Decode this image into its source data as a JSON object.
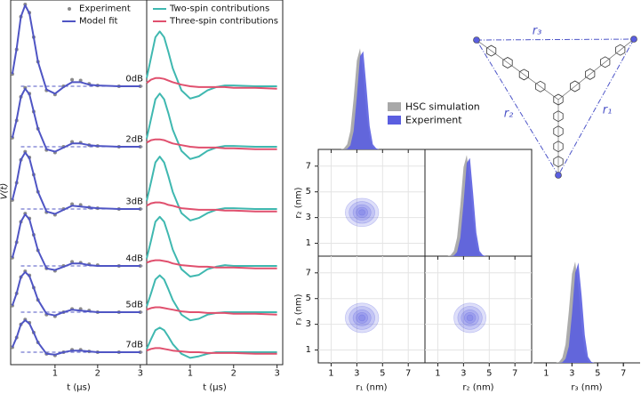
{
  "chart_data": [
    {
      "type": "trace-stack",
      "ylabel": "V(t)",
      "xlabel": "t (μs)",
      "x": [
        0,
        0.1,
        0.2,
        0.3,
        0.4,
        0.5,
        0.6,
        0.8,
        1.0,
        1.2,
        1.4,
        1.6,
        1.8,
        2.0,
        2.5,
        3.0
      ],
      "xlim": [
        -0.04,
        3.15
      ],
      "xticks": [
        1,
        2,
        3
      ],
      "zero_line": true,
      "trace_labels": [
        "0dB",
        "2dB",
        "3dB",
        "4dB",
        "5dB",
        "7dB"
      ],
      "series": [
        {
          "name": "Experiment",
          "color": "#8a8a8a",
          "marker": "dot",
          "values": [
            [
              0.15,
              0.45,
              0.85,
              1,
              0.9,
              0.6,
              0.3,
              -0.05,
              -0.1,
              0,
              0.08,
              0.07,
              0.03,
              0.01,
              0,
              0
            ],
            [
              0.11,
              0.32,
              0.61,
              0.72,
              0.65,
              0.43,
              0.22,
              -0.04,
              -0.07,
              0,
              0.06,
              0.05,
              0.02,
              0.01,
              0,
              0
            ],
            [
              0.11,
              0.32,
              0.6,
              0.7,
              0.63,
              0.42,
              0.21,
              -0.04,
              -0.07,
              0,
              0.06,
              0.05,
              0.02,
              0.01,
              0,
              0
            ],
            [
              0.1,
              0.29,
              0.54,
              0.64,
              0.58,
              0.38,
              0.19,
              -0.03,
              -0.06,
              0,
              0.05,
              0.04,
              0.02,
              0.01,
              0,
              0
            ],
            [
              0.08,
              0.23,
              0.43,
              0.5,
              0.45,
              0.3,
              0.15,
              -0.03,
              -0.05,
              0,
              0.04,
              0.04,
              0.02,
              0,
              0,
              0
            ],
            [
              0.06,
              0.18,
              0.34,
              0.4,
              0.36,
              0.24,
              0.12,
              -0.02,
              -0.04,
              0,
              0.03,
              0.03,
              0.01,
              0,
              0,
              0
            ]
          ]
        },
        {
          "name": "Model fit",
          "color": "#4f55c4",
          "values": [
            [
              0.15,
              0.46,
              0.85,
              0.99,
              0.89,
              0.6,
              0.3,
              -0.04,
              -0.09,
              -0.01,
              0.05,
              0.05,
              0.02,
              0.01,
              0,
              0
            ],
            [
              0.11,
              0.33,
              0.61,
              0.71,
              0.64,
              0.43,
              0.22,
              -0.03,
              -0.06,
              -0.01,
              0.04,
              0.04,
              0.02,
              0.01,
              0,
              0
            ],
            [
              0.11,
              0.32,
              0.6,
              0.69,
              0.62,
              0.42,
              0.21,
              -0.03,
              -0.06,
              -0.01,
              0.04,
              0.03,
              0.02,
              0.01,
              0,
              0
            ],
            [
              0.1,
              0.29,
              0.54,
              0.63,
              0.57,
              0.38,
              0.19,
              -0.03,
              -0.05,
              -0.01,
              0.03,
              0.03,
              0.01,
              0,
              0,
              0
            ],
            [
              0.08,
              0.23,
              0.43,
              0.49,
              0.44,
              0.3,
              0.15,
              -0.02,
              -0.04,
              0,
              0.03,
              0.02,
              0.01,
              0,
              0,
              0
            ],
            [
              0.06,
              0.18,
              0.34,
              0.39,
              0.35,
              0.24,
              0.12,
              -0.02,
              -0.03,
              0,
              0.02,
              0.02,
              0.01,
              0,
              0,
              0
            ]
          ]
        }
      ]
    },
    {
      "type": "trace-stack",
      "xlabel": "t (μs)",
      "x": [
        0,
        0.1,
        0.2,
        0.3,
        0.4,
        0.5,
        0.6,
        0.8,
        1.0,
        1.2,
        1.4,
        1.6,
        1.8,
        2.0,
        2.5,
        3.0
      ],
      "xlim": [
        0,
        3.13
      ],
      "xticks": [
        1,
        2,
        3
      ],
      "series": [
        {
          "name": "Two-spin contributions",
          "color": "#3fb8b0",
          "values": [
            [
              0.1,
              0.35,
              0.6,
              0.67,
              0.6,
              0.42,
              0.22,
              -0.05,
              -0.15,
              -0.12,
              -0.05,
              -0.01,
              0.01,
              0.01,
              0,
              0
            ],
            [
              0.1,
              0.34,
              0.58,
              0.65,
              0.58,
              0.41,
              0.21,
              -0.05,
              -0.15,
              -0.12,
              -0.05,
              -0.01,
              0.01,
              0.01,
              0,
              0
            ],
            [
              0.1,
              0.33,
              0.57,
              0.64,
              0.57,
              0.4,
              0.21,
              -0.05,
              -0.14,
              -0.11,
              -0.05,
              -0.01,
              0.01,
              0.01,
              0,
              0
            ],
            [
              0.09,
              0.31,
              0.54,
              0.6,
              0.54,
              0.38,
              0.2,
              -0.04,
              -0.13,
              -0.11,
              -0.04,
              -0.01,
              0.01,
              0,
              0,
              0
            ],
            [
              0.07,
              0.23,
              0.4,
              0.45,
              0.4,
              0.28,
              0.15,
              -0.03,
              -0.1,
              -0.08,
              -0.03,
              -0.01,
              0,
              0,
              0,
              0
            ],
            [
              0.04,
              0.16,
              0.27,
              0.3,
              0.27,
              0.19,
              0.1,
              -0.02,
              -0.07,
              -0.05,
              -0.02,
              0,
              0,
              0,
              0,
              0
            ]
          ]
        },
        {
          "name": "Three-spin contributions",
          "color": "#e0506e",
          "values": [
            [
              0.04,
              0.08,
              0.1,
              0.1,
              0.09,
              0.07,
              0.05,
              0.02,
              0,
              -0.01,
              -0.01,
              -0.01,
              -0.01,
              -0.02,
              -0.02,
              -0.03
            ],
            [
              0.05,
              0.08,
              0.09,
              0.09,
              0.08,
              0.06,
              0.04,
              0.02,
              0,
              -0.01,
              -0.01,
              -0.01,
              -0.02,
              -0.02,
              -0.03,
              -0.03
            ],
            [
              0.04,
              0.07,
              0.08,
              0.08,
              0.07,
              0.05,
              0.04,
              0.01,
              0,
              -0.01,
              -0.01,
              -0.01,
              -0.02,
              -0.02,
              -0.03,
              -0.03
            ],
            [
              0.04,
              0.06,
              0.07,
              0.07,
              0.06,
              0.05,
              0.03,
              0.01,
              0,
              -0.01,
              -0.01,
              -0.02,
              -0.02,
              -0.02,
              -0.03,
              -0.03
            ],
            [
              0.03,
              0.05,
              0.06,
              0.06,
              0.05,
              0.04,
              0.03,
              0.01,
              0,
              0,
              -0.01,
              -0.01,
              -0.01,
              -0.02,
              -0.02,
              -0.03
            ],
            [
              0.02,
              0.04,
              0.05,
              0.05,
              0.04,
              0.03,
              0.02,
              0.01,
              0,
              0,
              -0.01,
              -0.01,
              -0.01,
              -0.01,
              -0.02,
              -0.02
            ]
          ]
        }
      ]
    },
    {
      "type": "corner",
      "axes": [
        {
          "label": "r₁ (nm)",
          "lim": [
            0,
            8.3
          ],
          "ticks": [
            1,
            3,
            5,
            7
          ]
        },
        {
          "label": "r₂ (nm)",
          "lim": [
            0,
            8.3
          ],
          "ticks": [
            1,
            3,
            5,
            7
          ]
        },
        {
          "label": "r₃ (nm)",
          "lim": [
            0,
            8.3
          ],
          "ticks": [
            1,
            3,
            5,
            7
          ]
        }
      ],
      "r": [
        1.5,
        1.75,
        2,
        2.25,
        2.5,
        2.75,
        3,
        3.25,
        3.5,
        3.75,
        4,
        4.25,
        4.5,
        4.75,
        5,
        5.25,
        5.5
      ],
      "series": [
        {
          "name": "HSC simulation",
          "color": "#a8a8a8",
          "values": [
            [
              0,
              0,
              0.01,
              0.05,
              0.18,
              0.5,
              0.87,
              0.99,
              0.73,
              0.35,
              0.11,
              0.02,
              0,
              0,
              0,
              0,
              0
            ],
            [
              0,
              0,
              0.01,
              0.05,
              0.18,
              0.5,
              0.87,
              0.99,
              0.73,
              0.35,
              0.11,
              0.02,
              0,
              0,
              0,
              0,
              0
            ],
            [
              0,
              0,
              0.01,
              0.05,
              0.18,
              0.5,
              0.87,
              0.99,
              0.73,
              0.35,
              0.11,
              0.02,
              0,
              0,
              0,
              0,
              0
            ]
          ]
        },
        {
          "name": "Experiment",
          "color": "#5a5ee0",
          "values": [
            [
              0,
              0,
              0,
              0.005,
              0.04,
              0.18,
              0.52,
              0.91,
              0.96,
              0.61,
              0.23,
              0.05,
              0.01,
              0,
              0,
              0,
              0
            ],
            [
              0,
              0,
              0,
              0.005,
              0.04,
              0.18,
              0.52,
              0.91,
              0.96,
              0.61,
              0.23,
              0.05,
              0.01,
              0,
              0,
              0,
              0
            ],
            [
              0,
              0,
              0,
              0.005,
              0.04,
              0.16,
              0.48,
              0.88,
              0.98,
              0.66,
              0.27,
              0.06,
              0.01,
              0,
              0,
              0,
              0
            ]
          ]
        }
      ],
      "contours": [
        {
          "center": [
            3.4,
            3.4
          ],
          "rx": [
            1.3,
            1.0,
            0.7,
            0.45,
            0.25
          ],
          "ry": [
            1.1,
            0.85,
            0.6,
            0.4,
            0.22
          ]
        },
        {
          "center": [
            3.4,
            3.5
          ],
          "rx": [
            1.3,
            1.0,
            0.7,
            0.45,
            0.25
          ],
          "ry": [
            1.15,
            0.9,
            0.62,
            0.42,
            0.24
          ]
        },
        {
          "center": [
            3.5,
            3.5
          ],
          "rx": [
            1.25,
            0.95,
            0.68,
            0.44,
            0.24
          ],
          "ry": [
            1.15,
            0.9,
            0.62,
            0.42,
            0.24
          ]
        }
      ],
      "annotations": [
        "r₁",
        "r₂",
        "r₃"
      ]
    }
  ]
}
